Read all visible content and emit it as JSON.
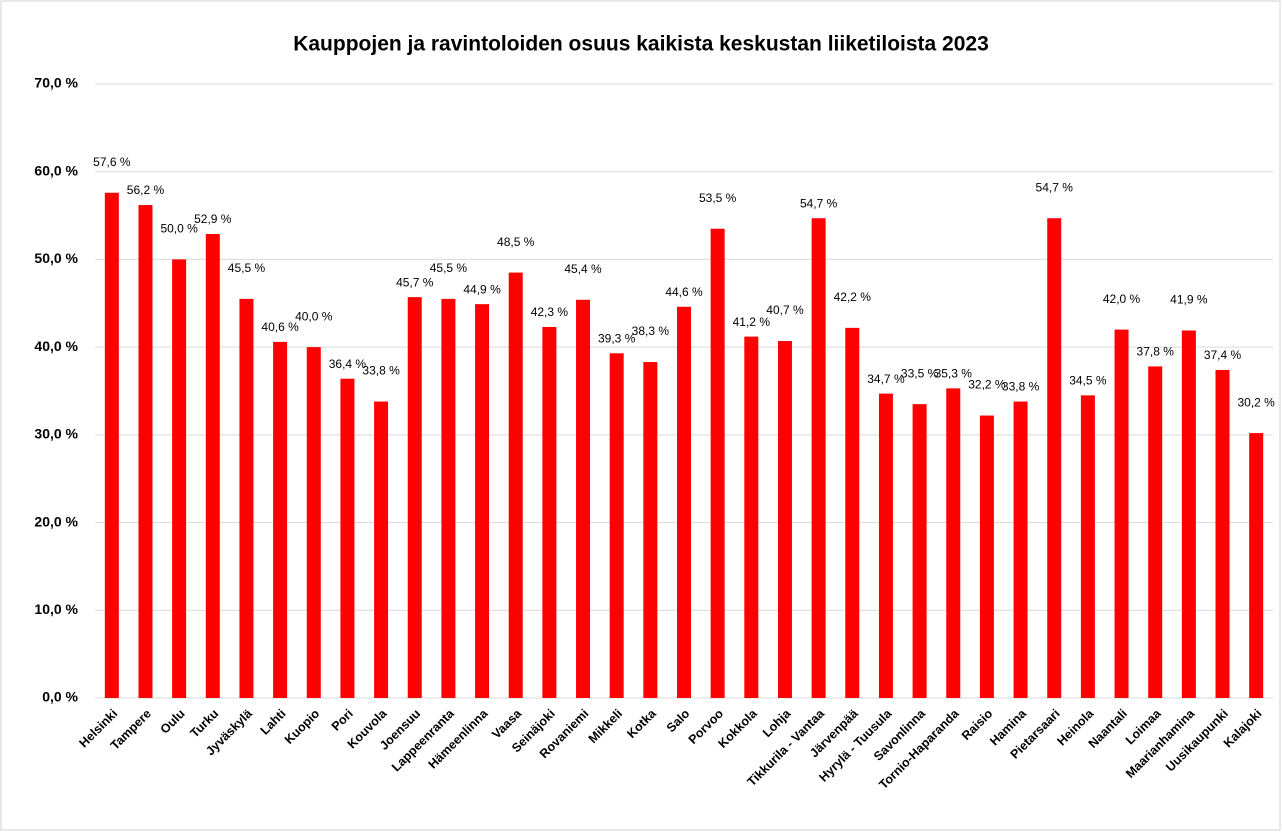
{
  "chart_data": {
    "type": "bar",
    "title": "Kauppojen ja ravintoloiden osuus kaikista keskustan liiketiloista 2023",
    "categories": [
      "Helsinki",
      "Tampere",
      "Oulu",
      "Turku",
      "Jyväskylä",
      "Lahti",
      "Kuopio",
      "Pori",
      "Kouvola",
      "Joensuu",
      "Lappeenranta",
      "Hämeenlinna",
      "Vaasa",
      "Seinäjoki",
      "Rovaniemi",
      "Mikkeli",
      "Kotka",
      "Salo",
      "Porvoo",
      "Kokkola",
      "Lohja",
      "Tikkurila - Vantaa",
      "Järvenpää",
      "Hyrylä - Tuusula",
      "Savonlinna",
      "Tornio-Haparanda",
      "Raisio",
      "Hamina",
      "Pietarsaari",
      "Heinola",
      "Naantali",
      "Loimaa",
      "Maarianhamina",
      "Uusikaupunki",
      "Kalajoki"
    ],
    "values": [
      57.6,
      56.2,
      50.0,
      52.9,
      45.5,
      40.6,
      40.0,
      36.4,
      33.8,
      45.7,
      45.5,
      44.9,
      48.5,
      42.3,
      45.4,
      39.3,
      38.3,
      44.6,
      53.5,
      41.2,
      40.7,
      54.7,
      42.2,
      34.7,
      33.5,
      35.3,
      32.2,
      33.8,
      54.7,
      34.5,
      42.0,
      37.8,
      41.9,
      37.4,
      30.2
    ],
    "value_labels": [
      "57,6 %",
      "56,2 %",
      "50,0 %",
      "52,9 %",
      "45,5 %",
      "40,6 %",
      "40,0 %",
      "36,4 %",
      "33,8 %",
      "45,7 %",
      "45,5 %",
      "44,9 %",
      "48,5 %",
      "42,3 %",
      "45,4 %",
      "39,3 %",
      "38,3 %",
      "44,6 %",
      "53,5 %",
      "41,2 %",
      "40,7 %",
      "54,7 %",
      "42,2 %",
      "34,7 %",
      "33,5 %",
      "35,3 %",
      "32,2 %",
      "33,8 %",
      "54,7 %",
      "34,5 %",
      "42,0 %",
      "37,8 %",
      "41,9 %",
      "37,4 %",
      "30,2 %"
    ],
    "color": "#ff0000",
    "ylim": [
      0,
      70
    ],
    "yticks": [
      {
        "value": 0,
        "label": "0,0 %"
      },
      {
        "value": 10,
        "label": "10,0 %"
      },
      {
        "value": 20,
        "label": "20,0 %"
      },
      {
        "value": 30,
        "label": "30,0 %"
      },
      {
        "value": 40,
        "label": "40,0 %"
      },
      {
        "value": 50,
        "label": "50,0 %"
      },
      {
        "value": 60,
        "label": "60,0 %"
      },
      {
        "value": 70,
        "label": "70,0 %"
      }
    ],
    "grid": true
  }
}
